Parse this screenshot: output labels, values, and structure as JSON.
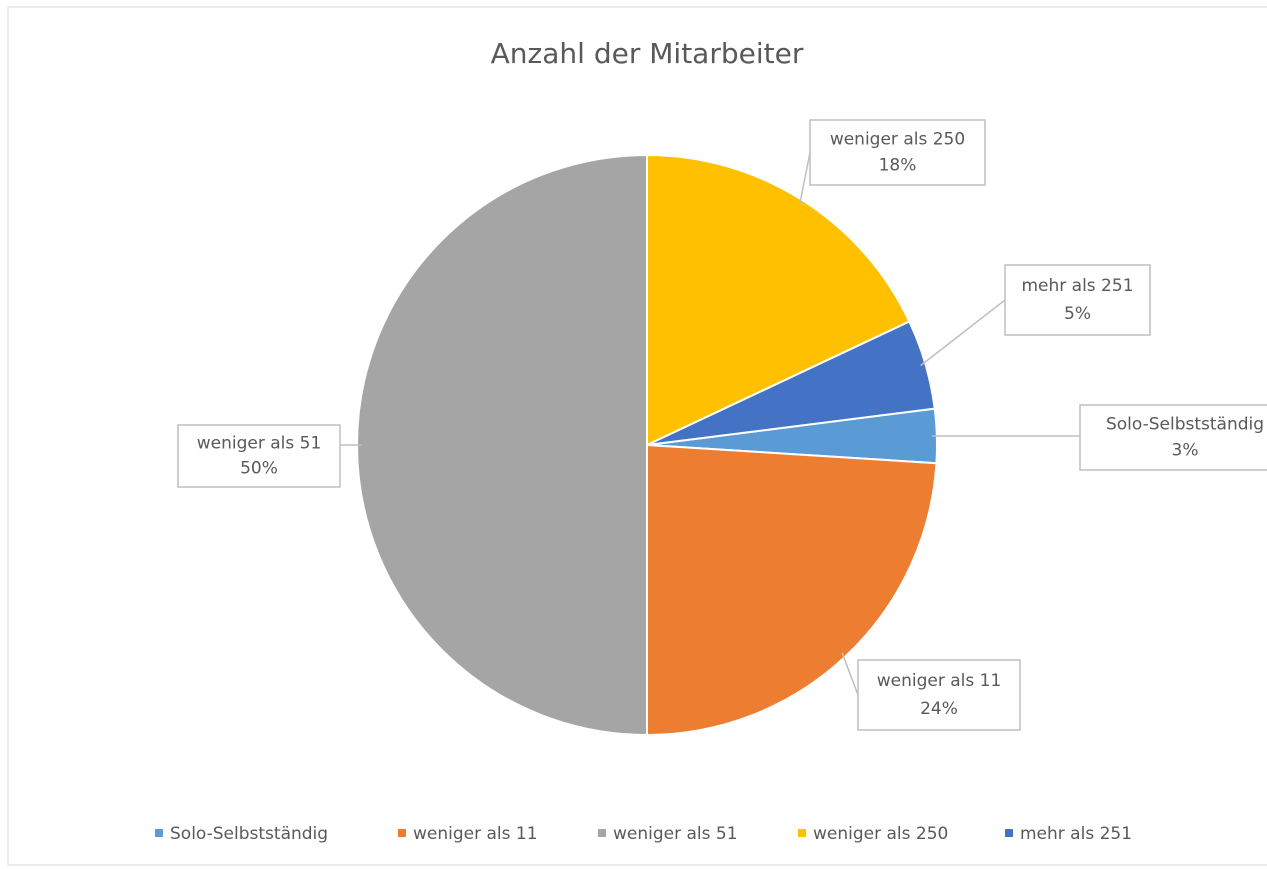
{
  "chart_data": {
    "type": "pie",
    "title": "Anzahl der Mitarbeiter",
    "categories": [
      "Solo-Selbstständig",
      "weniger als 11",
      "weniger als 51",
      "weniger als 250",
      "mehr als 251"
    ],
    "values": [
      3,
      24,
      50,
      18,
      5
    ],
    "value_labels": [
      "3%",
      "24%",
      "50%",
      "18%",
      "5%"
    ],
    "colors": [
      "#5b9bd5",
      "#ed7d31",
      "#a5a5a5",
      "#ffc000",
      "#4472c4"
    ],
    "legend": "bottom"
  }
}
